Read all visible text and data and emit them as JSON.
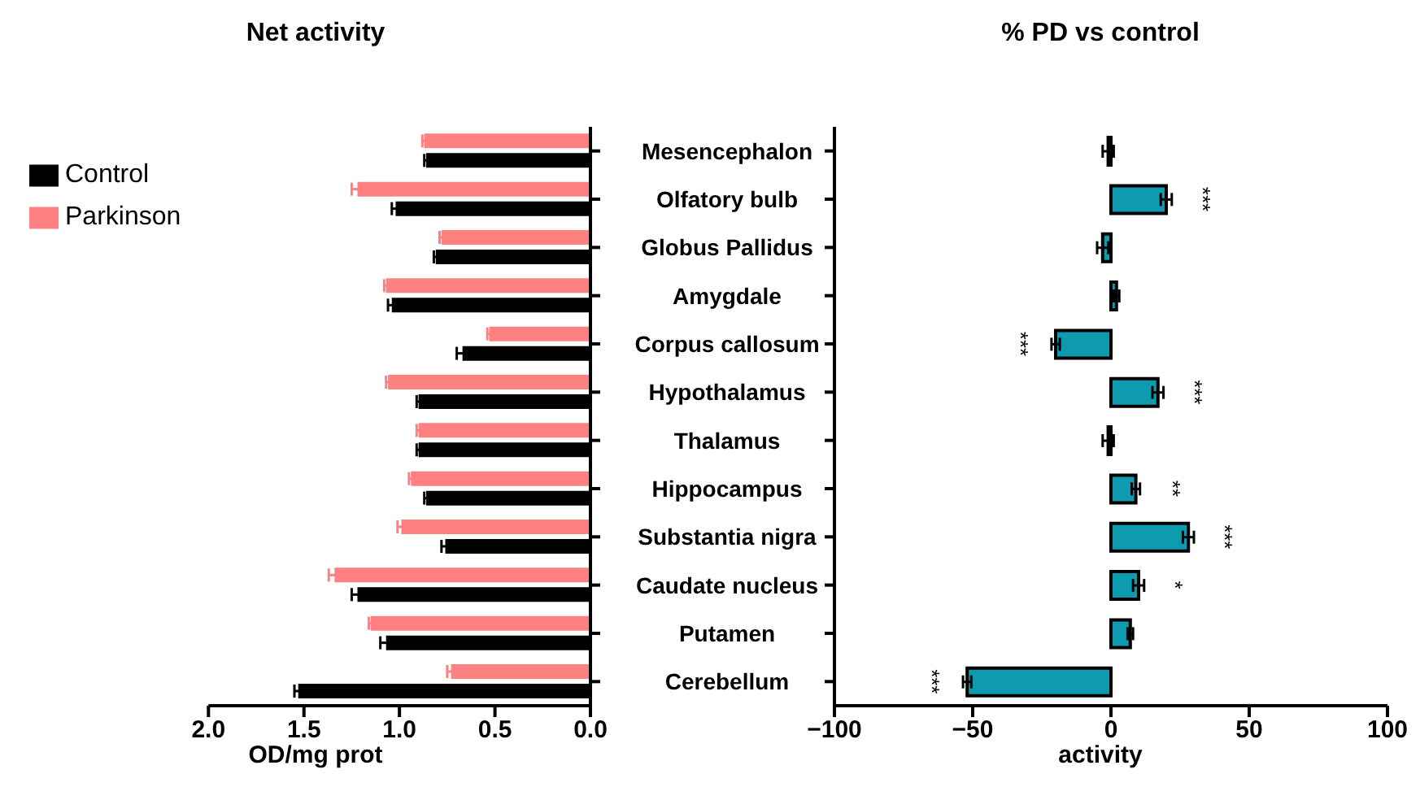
{
  "chart_data": [
    {
      "type": "bar",
      "orientation": "horizontal",
      "title": "Net activity",
      "xlabel": "OD/mg prot",
      "categories": [
        "Mesencephalon",
        "Olfatory bulb",
        "Globus Pallidus",
        "Amygdale",
        "Corpus callosum",
        "Hypothalamus",
        "Thalamus",
        "Hippocampus",
        "Substantia nigra",
        "Caudate nucleus",
        "Putamen",
        "Cerebellum"
      ],
      "series": [
        {
          "name": "Control",
          "color": "#000000",
          "values": [
            0.86,
            1.02,
            0.81,
            1.04,
            0.67,
            0.9,
            0.9,
            0.86,
            0.76,
            1.22,
            1.07,
            1.53
          ],
          "errors": [
            0.01,
            0.02,
            0.01,
            0.02,
            0.03,
            0.01,
            0.01,
            0.01,
            0.02,
            0.03,
            0.03,
            0.02
          ]
        },
        {
          "name": "Parkinson",
          "color": "#ff8080",
          "values": [
            0.87,
            1.22,
            0.78,
            1.07,
            0.53,
            1.06,
            0.9,
            0.94,
            0.99,
            1.34,
            1.15,
            0.73
          ],
          "errors": [
            0.01,
            0.03,
            0.01,
            0.01,
            0.01,
            0.01,
            0.01,
            0.01,
            0.02,
            0.03,
            0.01,
            0.02
          ]
        }
      ],
      "xlim": [
        2,
        0
      ],
      "xticks": [
        {
          "value": 2,
          "label": "2.0"
        },
        {
          "value": 1.5,
          "label": "1.5"
        },
        {
          "value": 1,
          "label": "1.0"
        },
        {
          "value": 0.5,
          "label": "0.5"
        },
        {
          "value": 0,
          "label": "0.0"
        }
      ],
      "legend": "top left",
      "grid": false
    },
    {
      "type": "bar",
      "orientation": "horizontal",
      "title": "% PD vs control",
      "xlabel": "activity",
      "categories": [
        "Mesencephalon",
        "Olfatory bulb",
        "Globus Pallidus",
        "Amygdale",
        "Corpus callosum",
        "Hypothalamus",
        "Thalamus",
        "Hippocampus",
        "Substantia nigra",
        "Caudate nucleus",
        "Putamen",
        "Cerebellum"
      ],
      "series": [
        {
          "color": "#0e9bb0",
          "values": [
            -1,
            20,
            -3,
            2,
            -20,
            17,
            -1,
            9,
            28,
            10,
            7,
            -52
          ],
          "errors": [
            2,
            2,
            2,
            1,
            1.5,
            2,
            2,
            1.5,
            2,
            2,
            1,
            1.5
          ]
        }
      ],
      "xlim": [
        -100,
        100
      ],
      "xticks": [
        {
          "value": -100,
          "label": "−100"
        },
        {
          "value": -50,
          "label": "−50"
        },
        0,
        50,
        100
      ],
      "tick_labels": "x",
      "grid": false,
      "annotations": [
        {
          "text": "***",
          "x": 20,
          "y": "Olfatory bulb"
        },
        {
          "text": "***",
          "x": -20,
          "y": "Corpus callosum"
        },
        {
          "text": "***",
          "x": 17,
          "y": "Hypothalamus"
        },
        {
          "text": "**",
          "x": 9,
          "y": "Hippocampus"
        },
        {
          "text": "***",
          "x": 28,
          "y": "Substantia nigra"
        },
        {
          "text": "*",
          "x": 10,
          "y": "Caudate nucleus"
        },
        {
          "text": "***",
          "x": -52,
          "y": "Cerebellum"
        }
      ]
    }
  ]
}
